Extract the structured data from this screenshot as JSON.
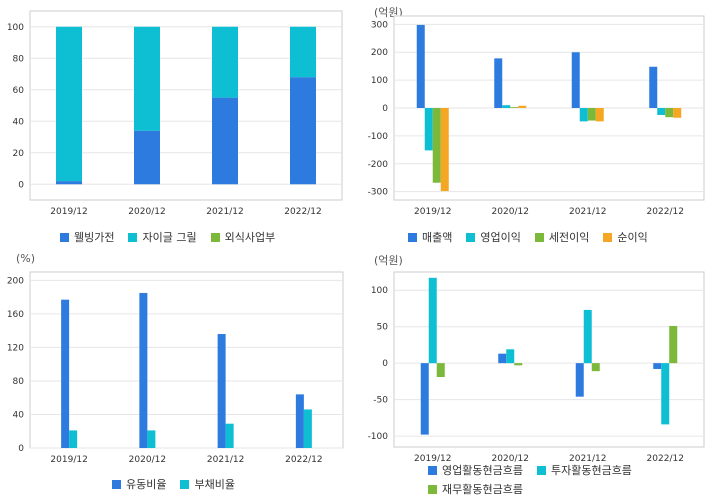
{
  "chart_data": [
    {
      "id": "c1",
      "type": "bar",
      "stacked": true,
      "unit_label": "",
      "categories": [
        "2019/12",
        "2020/12",
        "2021/12",
        "2022/12"
      ],
      "series": [
        {
          "name": "웰빙가전",
          "color": "#2e7be0",
          "values": [
            2,
            34,
            55,
            68
          ]
        },
        {
          "name": "자이글 그릴",
          "color": "#0ebfd3",
          "values": [
            98,
            66,
            45,
            32
          ]
        },
        {
          "name": "외식사업부",
          "color": "#7cb83a",
          "values": [
            0,
            0,
            0,
            0
          ]
        }
      ],
      "yticks": [
        0,
        20,
        40,
        60,
        80,
        100
      ],
      "ylim": [
        -10,
        110
      ],
      "grid": true,
      "legend": "bottom"
    },
    {
      "id": "c2",
      "type": "bar",
      "unit_label": "(억원)",
      "categories": [
        "2019/12",
        "2020/12",
        "2021/12",
        "2022/12"
      ],
      "series": [
        {
          "name": "매출액",
          "color": "#2e7be0",
          "values": [
            298,
            178,
            200,
            148
          ]
        },
        {
          "name": "영업이익",
          "color": "#0ebfd3",
          "values": [
            -152,
            10,
            -48,
            -25
          ]
        },
        {
          "name": "세전이익",
          "color": "#7cb83a",
          "values": [
            -268,
            3,
            -45,
            -33
          ]
        },
        {
          "name": "순이익",
          "color": "#f5a623",
          "values": [
            -298,
            8,
            -48,
            -35
          ]
        }
      ],
      "yticks": [
        -300,
        -200,
        -100,
        0,
        100,
        200,
        300
      ],
      "ylim": [
        -330,
        330
      ],
      "grid": true,
      "legend": "bottom"
    },
    {
      "id": "c3",
      "type": "bar",
      "unit_label": "(%)",
      "categories": [
        "2019/12",
        "2020/12",
        "2021/12",
        "2022/12"
      ],
      "series": [
        {
          "name": "유동비율",
          "color": "#2e7be0",
          "values": [
            177,
            185,
            136,
            64
          ]
        },
        {
          "name": "부채비율",
          "color": "#0ebfd3",
          "values": [
            21,
            21,
            29,
            46
          ]
        }
      ],
      "yticks": [
        0,
        40,
        80,
        120,
        160,
        200
      ],
      "ylim": [
        0,
        210
      ],
      "grid": true,
      "legend": "bottom"
    },
    {
      "id": "c4",
      "type": "bar",
      "unit_label": "(억원)",
      "categories": [
        "2019/12",
        "2020/12",
        "2021/12",
        "2022/12"
      ],
      "series": [
        {
          "name": "영업활동현금흐름",
          "color": "#2e7be0",
          "values": [
            -98,
            13,
            -46,
            -8
          ]
        },
        {
          "name": "투자활동현금흐름",
          "color": "#0ebfd3",
          "values": [
            117,
            19,
            73,
            -84
          ]
        },
        {
          "name": "재무활동현금흐름",
          "color": "#7cb83a",
          "values": [
            -19,
            -3,
            -11,
            51
          ]
        }
      ],
      "yticks": [
        -100,
        -50,
        0,
        50,
        100
      ],
      "ylim": [
        -115,
        125
      ],
      "grid": true,
      "legend": "bottom"
    }
  ]
}
